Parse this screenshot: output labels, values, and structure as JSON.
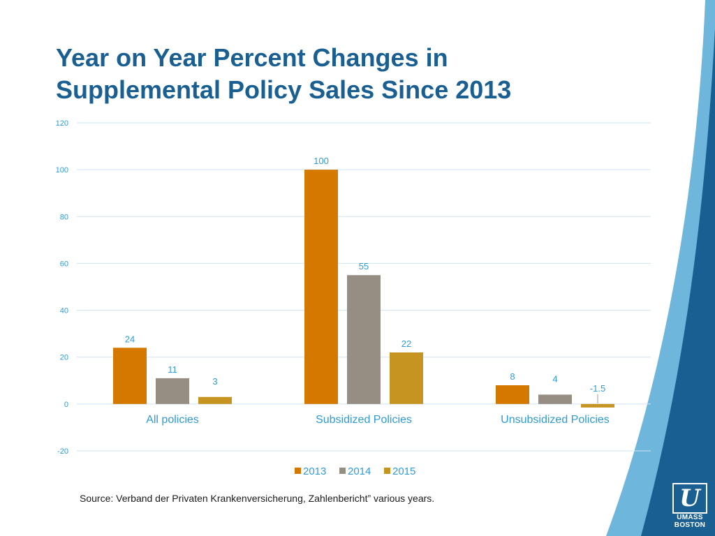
{
  "slide": {
    "title_line1": "Year on Year Percent Changes in",
    "title_line2": "Supplemental Policy Sales Since 2013",
    "source": "Source: Verband der Privaten Krankenversicherung, Zahlenbericht” various years.",
    "logo_line1": "UMASS",
    "logo_line2": "BOSTON"
  },
  "colors": {
    "title": "#1a5f91",
    "axis_text": "#2e9bd6",
    "gridline": "#cfe4f2",
    "brand_blue": "#1a5f91",
    "brand_light": "#6fb6dd"
  },
  "chart_data": {
    "type": "bar",
    "title": "Year on Year Percent Changes in Supplemental Policy Sales Since 2013",
    "categories": [
      "All policies",
      "Subsidized Policies",
      "Unsubsidized Policies"
    ],
    "series": [
      {
        "name": "2013",
        "color": "#d47800",
        "values": [
          24,
          100,
          8
        ],
        "labels": [
          "24",
          "100",
          "8"
        ]
      },
      {
        "name": "2014",
        "color": "#968e83",
        "values": [
          11,
          55,
          4
        ],
        "labels": [
          "11",
          "55",
          "4"
        ]
      },
      {
        "name": "2015",
        "color": "#c69420",
        "values": [
          3,
          22,
          -1.5
        ],
        "labels": [
          "3",
          "22",
          "-1.5"
        ]
      }
    ],
    "ylim": [
      -20,
      120
    ],
    "yticks": [
      120,
      100,
      80,
      60,
      40,
      20,
      0,
      -20
    ],
    "xlabel": "",
    "ylabel": "",
    "grid": true,
    "legend": "bottom"
  }
}
